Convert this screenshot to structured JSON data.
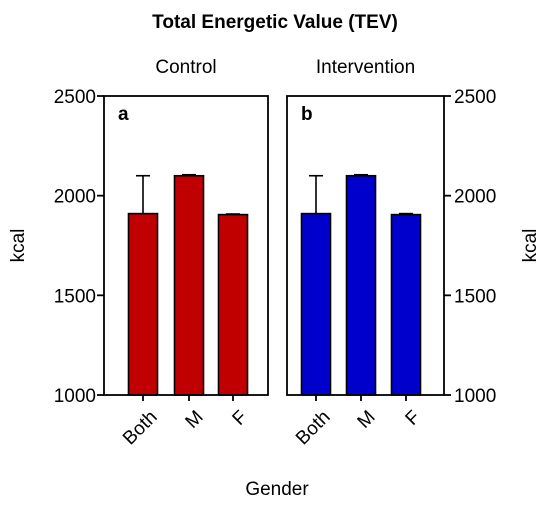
{
  "chart_data": {
    "type": "bar",
    "title": "Total Energetic Value (TEV)",
    "xlabel": "Gender",
    "ylabel": "kcal",
    "ylim": [
      1000,
      2500
    ],
    "yticks": [
      "1000",
      "1500",
      "2000",
      "2500"
    ],
    "categories": [
      "Both",
      "M",
      "F"
    ],
    "panels": [
      {
        "letter": "a",
        "title": "Control",
        "color": "#c00000",
        "values": [
          1910,
          2100,
          1905
        ],
        "error_upper": [
          2100,
          2105,
          1908
        ],
        "axis_side": "left"
      },
      {
        "letter": "b",
        "title": "Intervention",
        "color": "#0000cc",
        "values": [
          1910,
          2100,
          1905
        ],
        "error_upper": [
          2100,
          2105,
          1910
        ],
        "axis_side": "right"
      }
    ]
  }
}
